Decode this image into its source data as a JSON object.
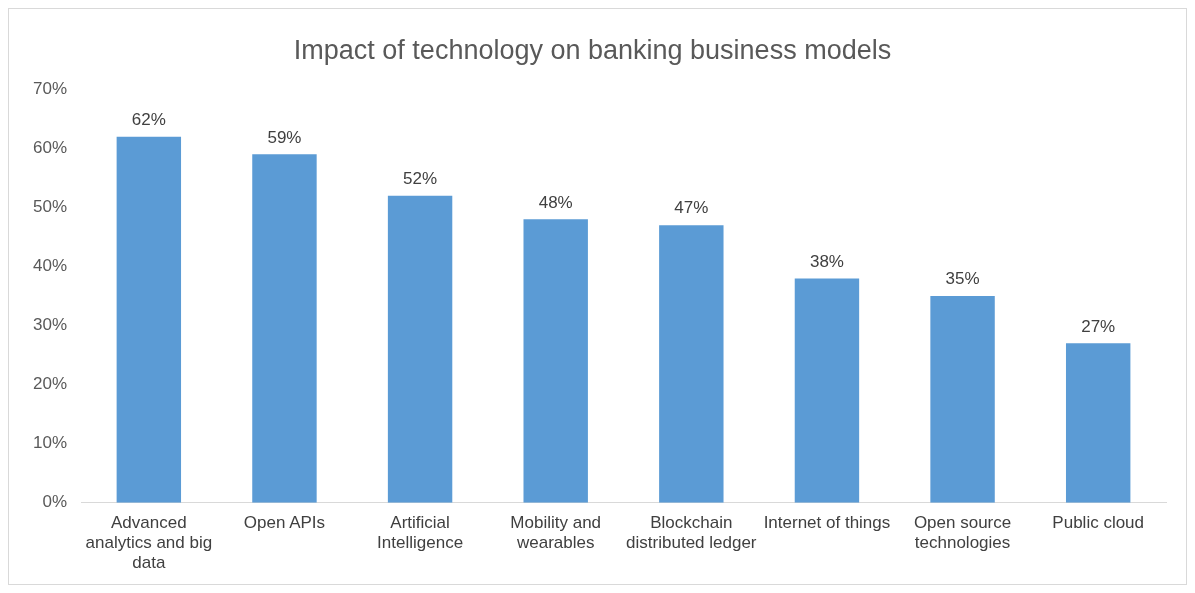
{
  "chart_data": {
    "type": "bar",
    "title": "Impact of technology on banking business models",
    "categories": [
      "Advanced analytics and big data",
      "Open APIs",
      "Artificial Intelligence",
      "Mobility and wearables",
      "Blockchain distributed ledger",
      "Internet of things",
      "Open source technologies",
      "Public cloud"
    ],
    "values": [
      62,
      59,
      52,
      48,
      47,
      38,
      35,
      27
    ],
    "value_labels": [
      "62%",
      "59%",
      "52%",
      "48%",
      "47%",
      "38%",
      "35%",
      "27%"
    ],
    "color": "#5b9bd5",
    "ylim": [
      0,
      70
    ],
    "yticks": [
      {
        "value": 0,
        "label": "0%"
      },
      {
        "value": 10,
        "label": "10%"
      },
      {
        "value": 20,
        "label": "20%"
      },
      {
        "value": 30,
        "label": "30%"
      },
      {
        "value": 40,
        "label": "40%"
      },
      {
        "value": 50,
        "label": "50%"
      },
      {
        "value": 60,
        "label": "60%"
      },
      {
        "value": 70,
        "label": "70%"
      }
    ],
    "grid": false,
    "legend": false
  }
}
